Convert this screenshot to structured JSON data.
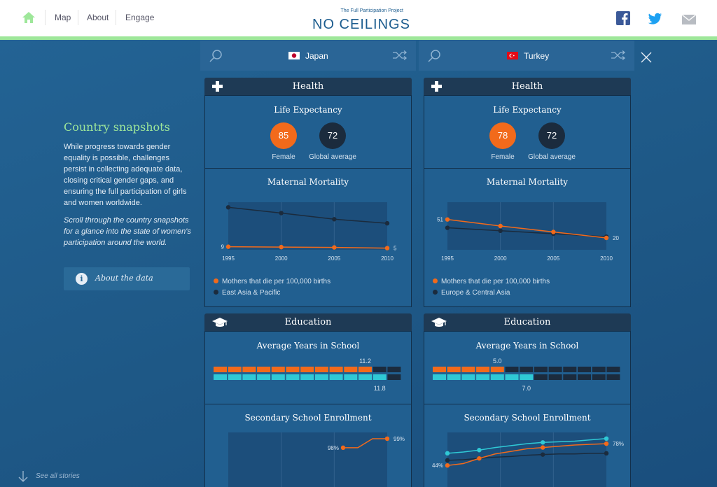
{
  "nav": {
    "home_icon": "home-icon",
    "items": [
      "Map",
      "About",
      "Engage"
    ]
  },
  "logo": {
    "subtitle": "The Full Participation Project",
    "title": "NO CEILINGS"
  },
  "social": [
    "facebook-icon",
    "twitter-icon",
    "mail-icon"
  ],
  "sidebar": {
    "title": "Country snapshots",
    "body": "While progress towards gender equality is possible, challenges persist in collecting adequate data, closing critical gender gaps, and ensuring the full participation of girls and women worldwide.",
    "italic": "Scroll through the country snapshots for a glance into the state of women's participation around the world.",
    "about_label": "About the data",
    "see_all": "See all stories"
  },
  "colors": {
    "accent": "#9ee79a",
    "orange": "#f26a1b",
    "dark": "#1b2b3d",
    "cyan": "#2fc9d6",
    "panel": "#215f90"
  },
  "countries": [
    {
      "name": "Japan",
      "health_title": "Health",
      "life_title": "Life Expectancy",
      "female": "85",
      "female_label": "Female",
      "global": "72",
      "global_label": "Global average",
      "mm_title": "Maternal Mortality",
      "legend_a": "Mothers that die per 100,000 births",
      "legend_b": "East Asia & Pacific",
      "mm_start_label": "9",
      "mm_end_label": "5",
      "edu_title": "Education",
      "ays_title": "Average Years in School",
      "ays_top_label": "11.2",
      "ays_bottom_label": "11.8",
      "sse_title": "Secondary School Enrollment",
      "sse_start_label": "98%",
      "sse_end_label": "99%"
    },
    {
      "name": "Turkey",
      "health_title": "Health",
      "life_title": "Life Expectancy",
      "female": "78",
      "female_label": "Female",
      "global": "72",
      "global_label": "Global average",
      "mm_title": "Maternal Mortality",
      "legend_a": "Mothers that die per 100,000 births",
      "legend_b": "Europe & Central Asia",
      "mm_start_label": "51",
      "mm_end_label": "20",
      "edu_title": "Education",
      "ays_title": "Average Years in School",
      "ays_top_label": "5.0",
      "ays_bottom_label": "7.0",
      "sse_title": "Secondary School Enrollment",
      "sse_start_label": "44%",
      "sse_end_label": "78%"
    }
  ],
  "chart_data": [
    {
      "type": "line",
      "title": "Maternal Mortality",
      "country": "Japan",
      "x": [
        1995,
        2000,
        2005,
        2010
      ],
      "series": [
        {
          "name": "Mothers that die per 100,000 births",
          "values": [
            9,
            8,
            7,
            5
          ],
          "color": "#f26a1b"
        },
        {
          "name": "East Asia & Pacific",
          "values": [
            125,
            108,
            90,
            78
          ],
          "color": "#1b2b3d"
        }
      ],
      "ylim": [
        0,
        140
      ]
    },
    {
      "type": "line",
      "title": "Maternal Mortality",
      "country": "Turkey",
      "x": [
        1995,
        2000,
        2005,
        2010
      ],
      "series": [
        {
          "name": "Mothers that die per 100,000 births",
          "values": [
            51,
            40,
            30,
            20
          ],
          "color": "#f26a1b"
        },
        {
          "name": "Europe & Central Asia",
          "values": [
            37,
            32,
            27,
            22
          ],
          "color": "#1b2b3d"
        }
      ],
      "ylim": [
        0,
        80
      ]
    },
    {
      "type": "bar",
      "title": "Average Years in School",
      "country": "Japan",
      "max": 13,
      "series": [
        {
          "values": [
            11.2
          ],
          "color": "#f26a1b"
        },
        {
          "values": [
            11.8
          ],
          "color": "#2fc9d6"
        }
      ]
    },
    {
      "type": "bar",
      "title": "Average Years in School",
      "country": "Turkey",
      "max": 13,
      "series": [
        {
          "values": [
            5.0
          ],
          "color": "#f26a1b"
        },
        {
          "values": [
            7.0
          ],
          "color": "#2fc9d6"
        }
      ]
    },
    {
      "type": "line",
      "title": "Secondary School Enrollment",
      "country": "Japan",
      "series": [
        {
          "values": [
            98,
            98,
            99,
            99
          ],
          "color": "#f26a1b"
        }
      ],
      "ylim": [
        0,
        100
      ]
    },
    {
      "type": "line",
      "title": "Secondary School Enrollment",
      "country": "Turkey",
      "series": [
        {
          "values": [
            44,
            47,
            55,
            62,
            66,
            70,
            72,
            74,
            76,
            77,
            78
          ],
          "color": "#f26a1b"
        },
        {
          "values": [
            63,
            65,
            68,
            72,
            75,
            78,
            80,
            81,
            82,
            84,
            86
          ],
          "color": "#2fc9d6"
        },
        {
          "values": [
            52,
            53,
            55,
            57,
            58,
            60,
            61,
            62,
            62,
            63,
            63
          ],
          "color": "#1b2b3d"
        }
      ],
      "ylim": [
        30,
        100
      ]
    }
  ],
  "tick_labels": [
    "1995",
    "2000",
    "2005",
    "2010"
  ]
}
